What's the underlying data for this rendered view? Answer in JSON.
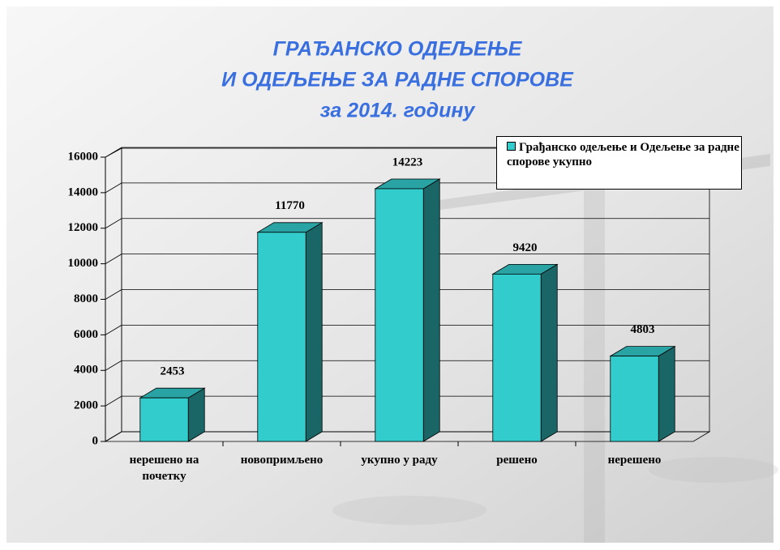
{
  "chart_data": {
    "type": "bar3d",
    "title": [
      "ГРАЂАНСКО ОДЕЉЕЊЕ",
      "И ОДЕЉЕЊЕ ЗА РАДНЕ СПОРОВЕ",
      "за 2014. годину"
    ],
    "categories": [
      "нерешено на почетку",
      "новопримљено",
      "укупно у раду",
      "решено",
      "нерешено"
    ],
    "series": [
      {
        "name": "Грађанско одељење и Одељење за радне спорове укупно",
        "color": "#33cccc",
        "values": [
          2453,
          11770,
          14223,
          9420,
          4803
        ]
      }
    ],
    "ylim": [
      0,
      16000
    ],
    "yticks": [
      0,
      2000,
      4000,
      6000,
      8000,
      10000,
      12000,
      14000,
      16000
    ],
    "grid": true,
    "legend": "top-right"
  }
}
